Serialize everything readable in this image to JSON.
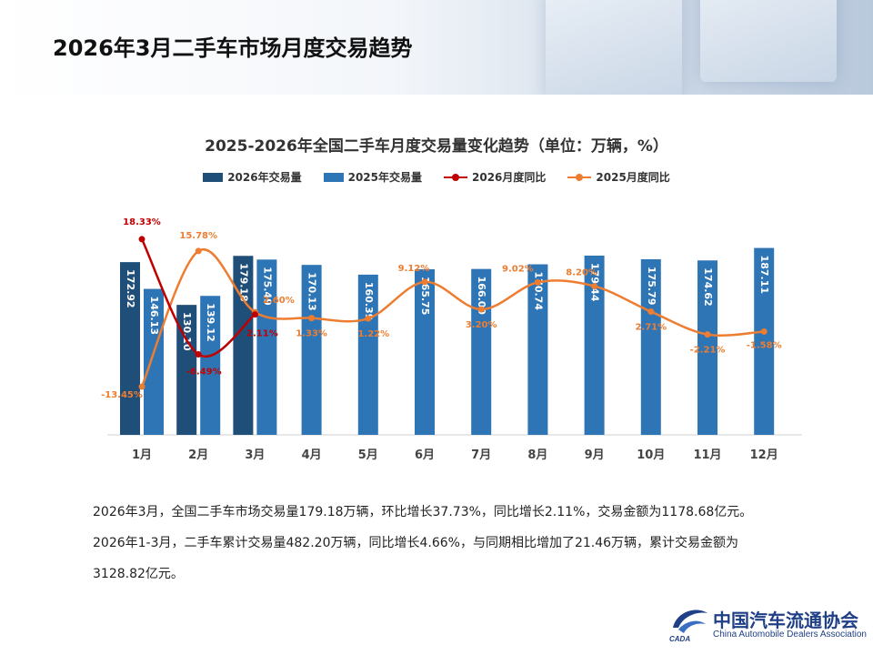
{
  "page": {
    "title": "2026年3月二手车市场月度交易趋势"
  },
  "chart_data": {
    "type": "bar",
    "title": "2025-2026年全国二手车月度交易量变化趋势（单位：万辆，%）",
    "categories": [
      "1月",
      "2月",
      "3月",
      "4月",
      "5月",
      "6月",
      "7月",
      "8月",
      "9月",
      "10月",
      "11月",
      "12月"
    ],
    "series": [
      {
        "name": "2026年交易量",
        "type": "bar",
        "color": "#1f4e79",
        "values": [
          172.92,
          130.1,
          179.18,
          null,
          null,
          null,
          null,
          null,
          null,
          null,
          null,
          null
        ],
        "labels": [
          "172.92",
          "130.10",
          "179.18"
        ]
      },
      {
        "name": "2025年交易量",
        "type": "bar",
        "color": "#2e75b6",
        "values": [
          146.13,
          139.12,
          175.49,
          170.13,
          160.39,
          165.75,
          166.09,
          170.74,
          179.44,
          175.79,
          174.62,
          187.11
        ],
        "labels": [
          "146.13",
          "139.12",
          "175.49",
          "170.13",
          "160.39",
          "165.75",
          "166.09",
          "170.74",
          "179.44",
          "175.79",
          "174.62",
          "187.11"
        ]
      },
      {
        "name": "2026月度同比",
        "type": "line",
        "color": "#c00000",
        "values": [
          18.33,
          -6.49,
          2.11,
          null,
          null,
          null,
          null,
          null,
          null,
          null,
          null,
          null
        ],
        "labels": [
          "18.33%",
          "-6.49%",
          "2.11%"
        ]
      },
      {
        "name": "2025月度同比",
        "type": "line",
        "color": "#ed7d31",
        "values": [
          -13.45,
          15.78,
          2.6,
          1.33,
          1.22,
          9.12,
          3.2,
          9.02,
          8.2,
          2.71,
          -2.21,
          -1.58
        ],
        "labels": [
          "-13.45%",
          "15.78%",
          "2.60%",
          "1.33%",
          "1.22%",
          "9.12%",
          "3.20%",
          "9.02%",
          "8.20%",
          "2.71%",
          "-2.21%",
          "-1.58%"
        ]
      }
    ],
    "legend_position": "top",
    "grid": false
  },
  "description": [
    "2026年3月，全国二手车市场交易量179.18万辆，环比增长37.73%，同比增长2.11%，交易金额为1178.68亿元。",
    "2026年1-3月，二手车累计交易量482.20万辆，同比增长4.66%，与同期相比增加了21.46万辆，累计交易金额为",
    "3128.82亿元。"
  ],
  "logo": {
    "name_cn": "中国汽车流通协会",
    "name_en": "China Automobile Dealers Association",
    "abbr": "CADA",
    "icon": "cada-logo-icon"
  }
}
